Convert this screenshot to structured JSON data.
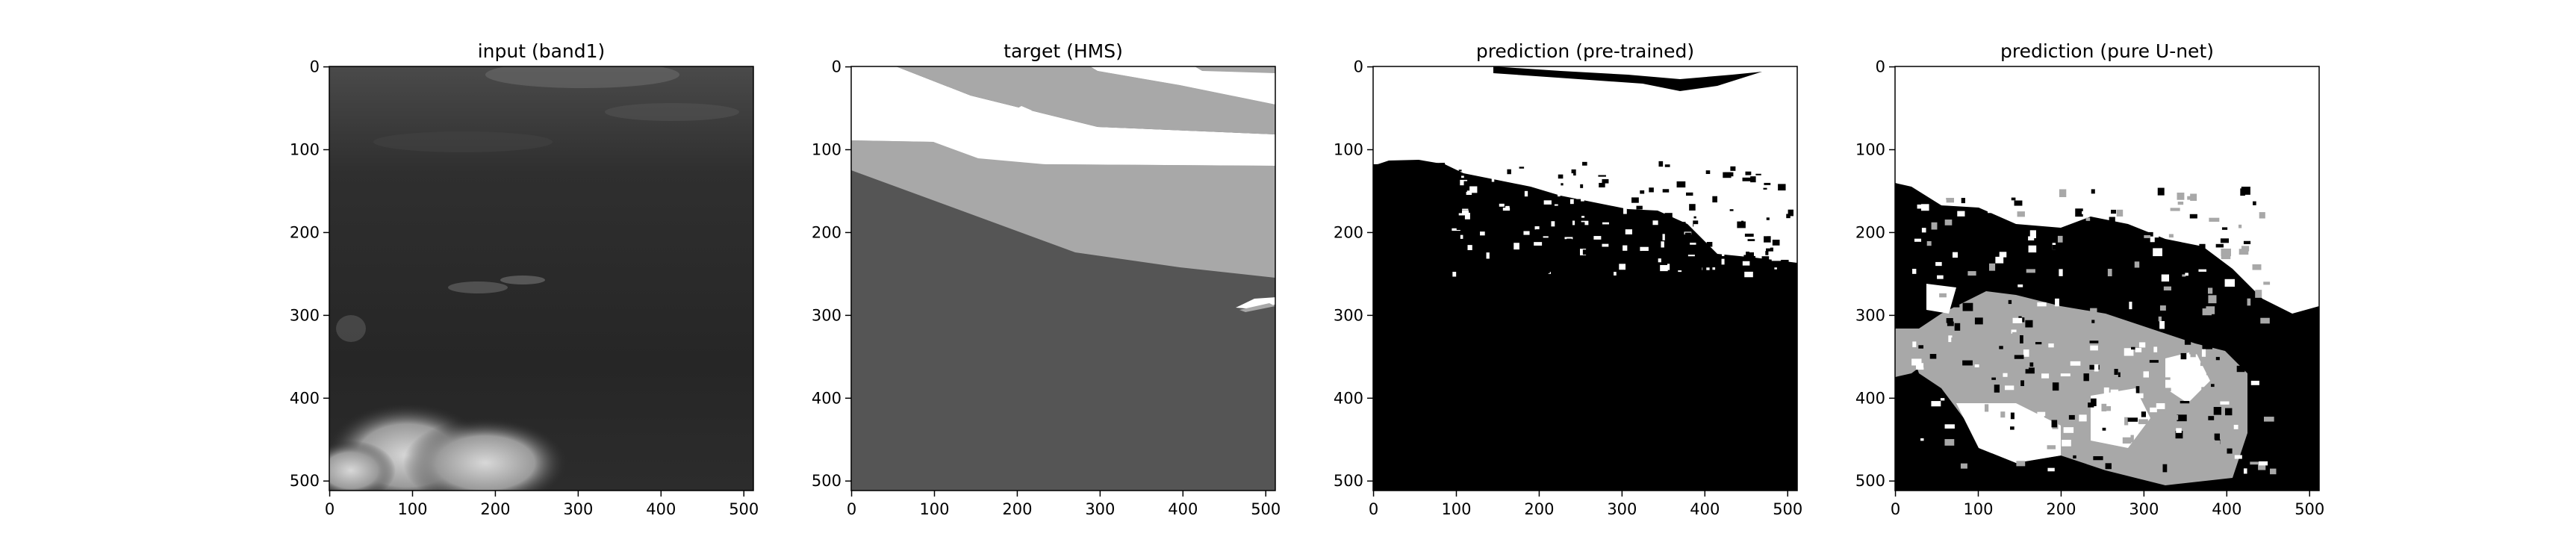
{
  "figure": {
    "panels": [
      {
        "id": "input",
        "title": "input (band1)"
      },
      {
        "id": "target",
        "title": "target (HMS)"
      },
      {
        "id": "pretrained",
        "title": "prediction (pre-trained)"
      },
      {
        "id": "unet",
        "title": "prediction (pure U-net)"
      }
    ],
    "axis": {
      "x_ticks": [
        "0",
        "100",
        "200",
        "300",
        "400",
        "500"
      ],
      "y_ticks": [
        "0",
        "100",
        "200",
        "300",
        "400",
        "500"
      ],
      "x_range": [
        0,
        511
      ],
      "y_range": [
        511,
        0
      ]
    },
    "colors": {
      "input_base": "#2b2b2b",
      "target_dark": "#555555",
      "target_mid": "#a8a8a8",
      "target_light": "#ffffff",
      "pred_black": "#000000",
      "pred_white": "#ffffff",
      "pred_gray": "#a8a8a8"
    }
  }
}
